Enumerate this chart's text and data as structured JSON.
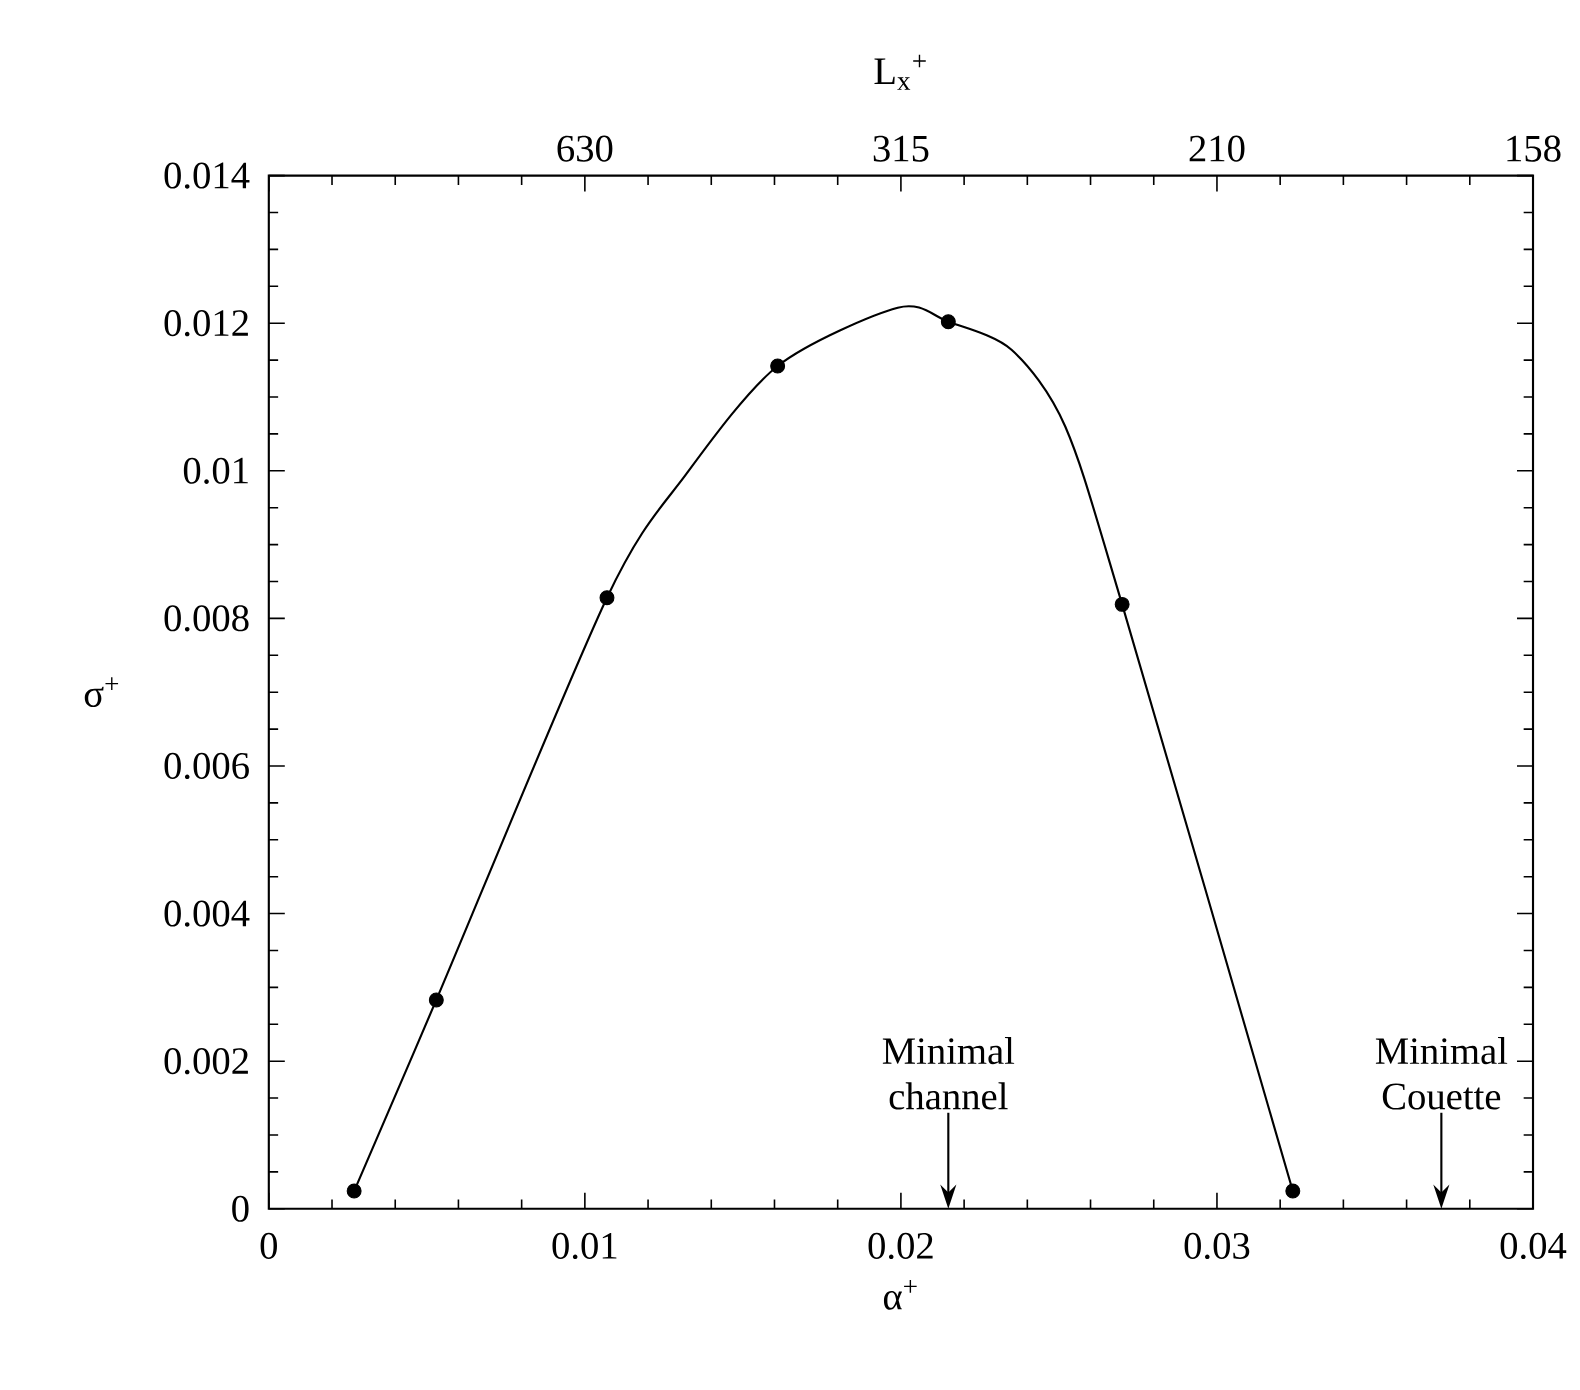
{
  "chart_data": {
    "type": "scatter",
    "xlabel": "α$^{+}$",
    "ylabel": "σ$^{+}$",
    "annotations": [
      "L$_{x}$$^{+}$",
      "630",
      "315",
      "210",
      "158"
    ],
    "xlim": [
      0,
      0.04
    ],
    "xticks": [
      0,
      0.01,
      0.02,
      0.03,
      0.04
    ],
    "ylim": [
      0,
      0.014
    ],
    "yticks": [
      0,
      0.002,
      0.004,
      0.006,
      0.008,
      0.01,
      0.012,
      0.014
    ],
    "marker": "circle",
    "series": [
      {
        "color": "#000000",
        "x": [
          0.0027,
          0.0053,
          0.0107,
          0.0161,
          0.0215,
          0.027,
          0.0324
        ],
        "values": [
          0.00024,
          0.00283,
          0.00828,
          0.01142,
          0.01202,
          0.00819,
          0.00024
        ]
      },
      {
        "type": "line",
        "color": "#000000",
        "marker": "none",
        "x": [
          0.0027,
          0.0053,
          0.0107,
          0.0132,
          0.0161,
          0.0199,
          0.0215,
          0.0235,
          0.0252,
          0.027,
          0.0324
        ],
        "values": [
          0.00024,
          0.00283,
          0.00828,
          0.00995,
          0.01142,
          0.01221,
          0.01202,
          0.01164,
          0.0106,
          0.00819,
          0.00024
        ]
      }
    ],
    "ref_lines": [
      {
        "axis": "x",
        "value": 0.0215,
        "label": "Minimal channel"
      },
      {
        "axis": "x",
        "value": 0.0371,
        "label": "Minimal Couette"
      }
    ]
  }
}
